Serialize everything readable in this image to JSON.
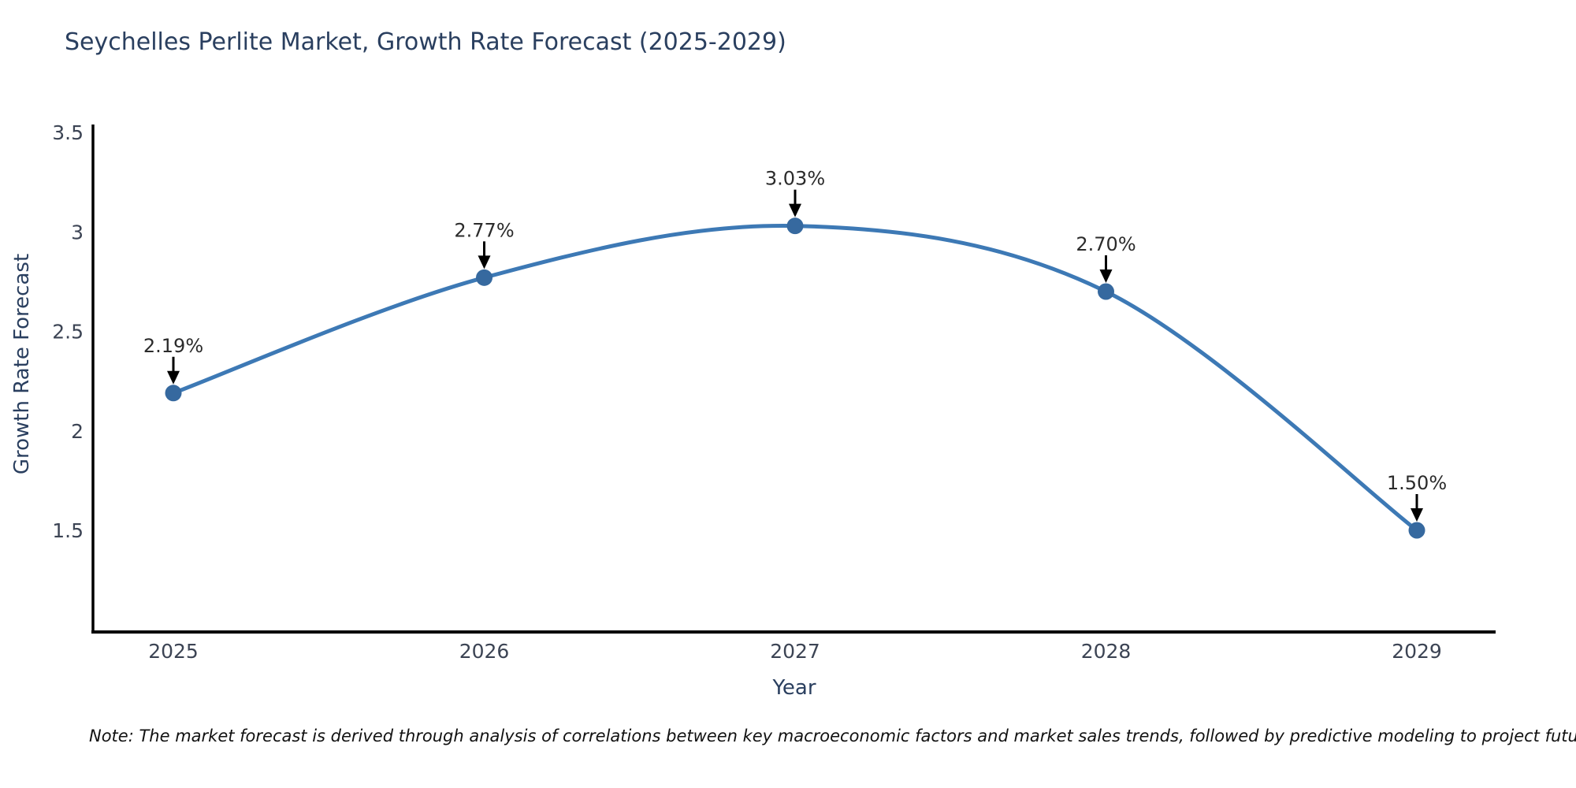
{
  "title": "Seychelles Perlite Market, Growth Rate Forecast (2025-2029)",
  "note": "Note: The market forecast is derived through analysis of correlations between key macroeconomic factors and market sales trends, followed by predictive modeling to project future sales",
  "chart_data": {
    "type": "line",
    "title": "Seychelles Perlite Market, Growth Rate Forecast (2025-2029)",
    "xlabel": "Year",
    "ylabel": "Growth Rate Forecast",
    "x": [
      2025,
      2026,
      2027,
      2028,
      2029
    ],
    "values": [
      2.19,
      2.77,
      3.03,
      2.7,
      1.5
    ],
    "point_labels": [
      "2.19%",
      "2.77%",
      "3.03%",
      "2.70%",
      "1.50%"
    ],
    "x_tick_labels": [
      "2025",
      "2026",
      "2027",
      "2028",
      "2029"
    ],
    "y_ticks": [
      1.5,
      2,
      2.5,
      3,
      3.5
    ],
    "y_tick_labels": [
      "1.5",
      "2",
      "2.5",
      "3",
      "3.5"
    ],
    "ylim": [
      1.0,
      3.55
    ],
    "xlim": [
      2024.74,
      2029.26
    ],
    "line_shape": "spline",
    "grid": "off",
    "legend": "none",
    "colors": {
      "line": "#3d79b5",
      "marker": "#36699f",
      "axis": "#000000",
      "tick_label": "#3c4454",
      "axis_title": "#2a3f5f",
      "annotation_text": "#2b2b2b",
      "annotation_arrow": "#000000",
      "background": "#ffffff"
    }
  }
}
